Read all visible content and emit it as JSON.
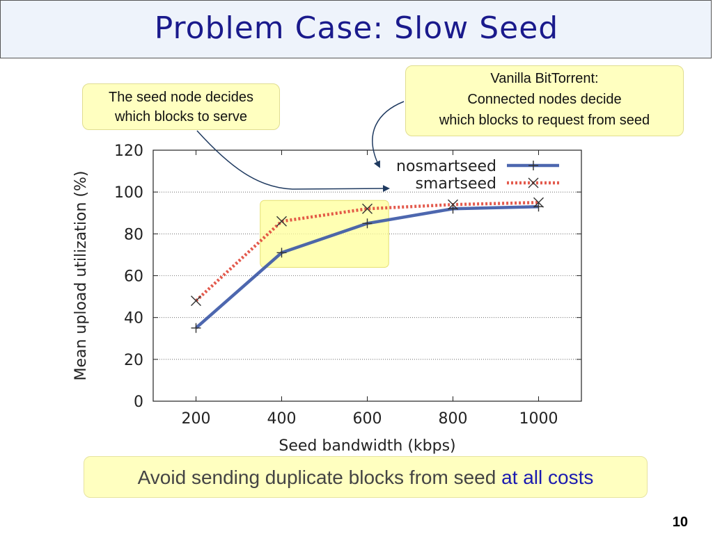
{
  "slide": {
    "title": "Problem Case: Slow Seed",
    "page_number": "10",
    "callout_left": {
      "line1": "The seed node decides",
      "line2": "which blocks to serve"
    },
    "callout_right": {
      "line1": "Vanilla BitTorrent:",
      "line2": "Connected nodes decide",
      "line3": "which blocks to request from seed"
    },
    "bottom_text": {
      "main": "Avoid sending duplicate blocks from seed ",
      "accent": "at all costs"
    }
  },
  "colors": {
    "title": "#1a1a8c",
    "nosmartseed": "#3a56a6",
    "smartseed": "#e0483a",
    "highlight": "#ffff99",
    "accent": "#1a1ab0"
  },
  "chart_data": {
    "type": "line",
    "xlabel": "Seed bandwidth (kbps)",
    "ylabel": "Mean upload utilization (%)",
    "x": [
      200,
      400,
      600,
      800,
      1000
    ],
    "xticks": [
      "200",
      "400",
      "600",
      "800",
      "1000"
    ],
    "yticks": [
      "0",
      "20",
      "40",
      "60",
      "80",
      "100",
      "120"
    ],
    "ylim": [
      0,
      120
    ],
    "grid": "horizontal dotted",
    "legend_position": "top-right",
    "highlight_region": {
      "x": [
        350,
        650
      ],
      "y": [
        64,
        96
      ]
    },
    "series": [
      {
        "name": "nosmartseed",
        "marker": "+",
        "style": "solid",
        "values": [
          35,
          71,
          85,
          92,
          93
        ]
      },
      {
        "name": "smartseed",
        "marker": "x",
        "style": "dotted",
        "values": [
          48,
          86,
          92,
          94,
          95
        ]
      }
    ]
  }
}
